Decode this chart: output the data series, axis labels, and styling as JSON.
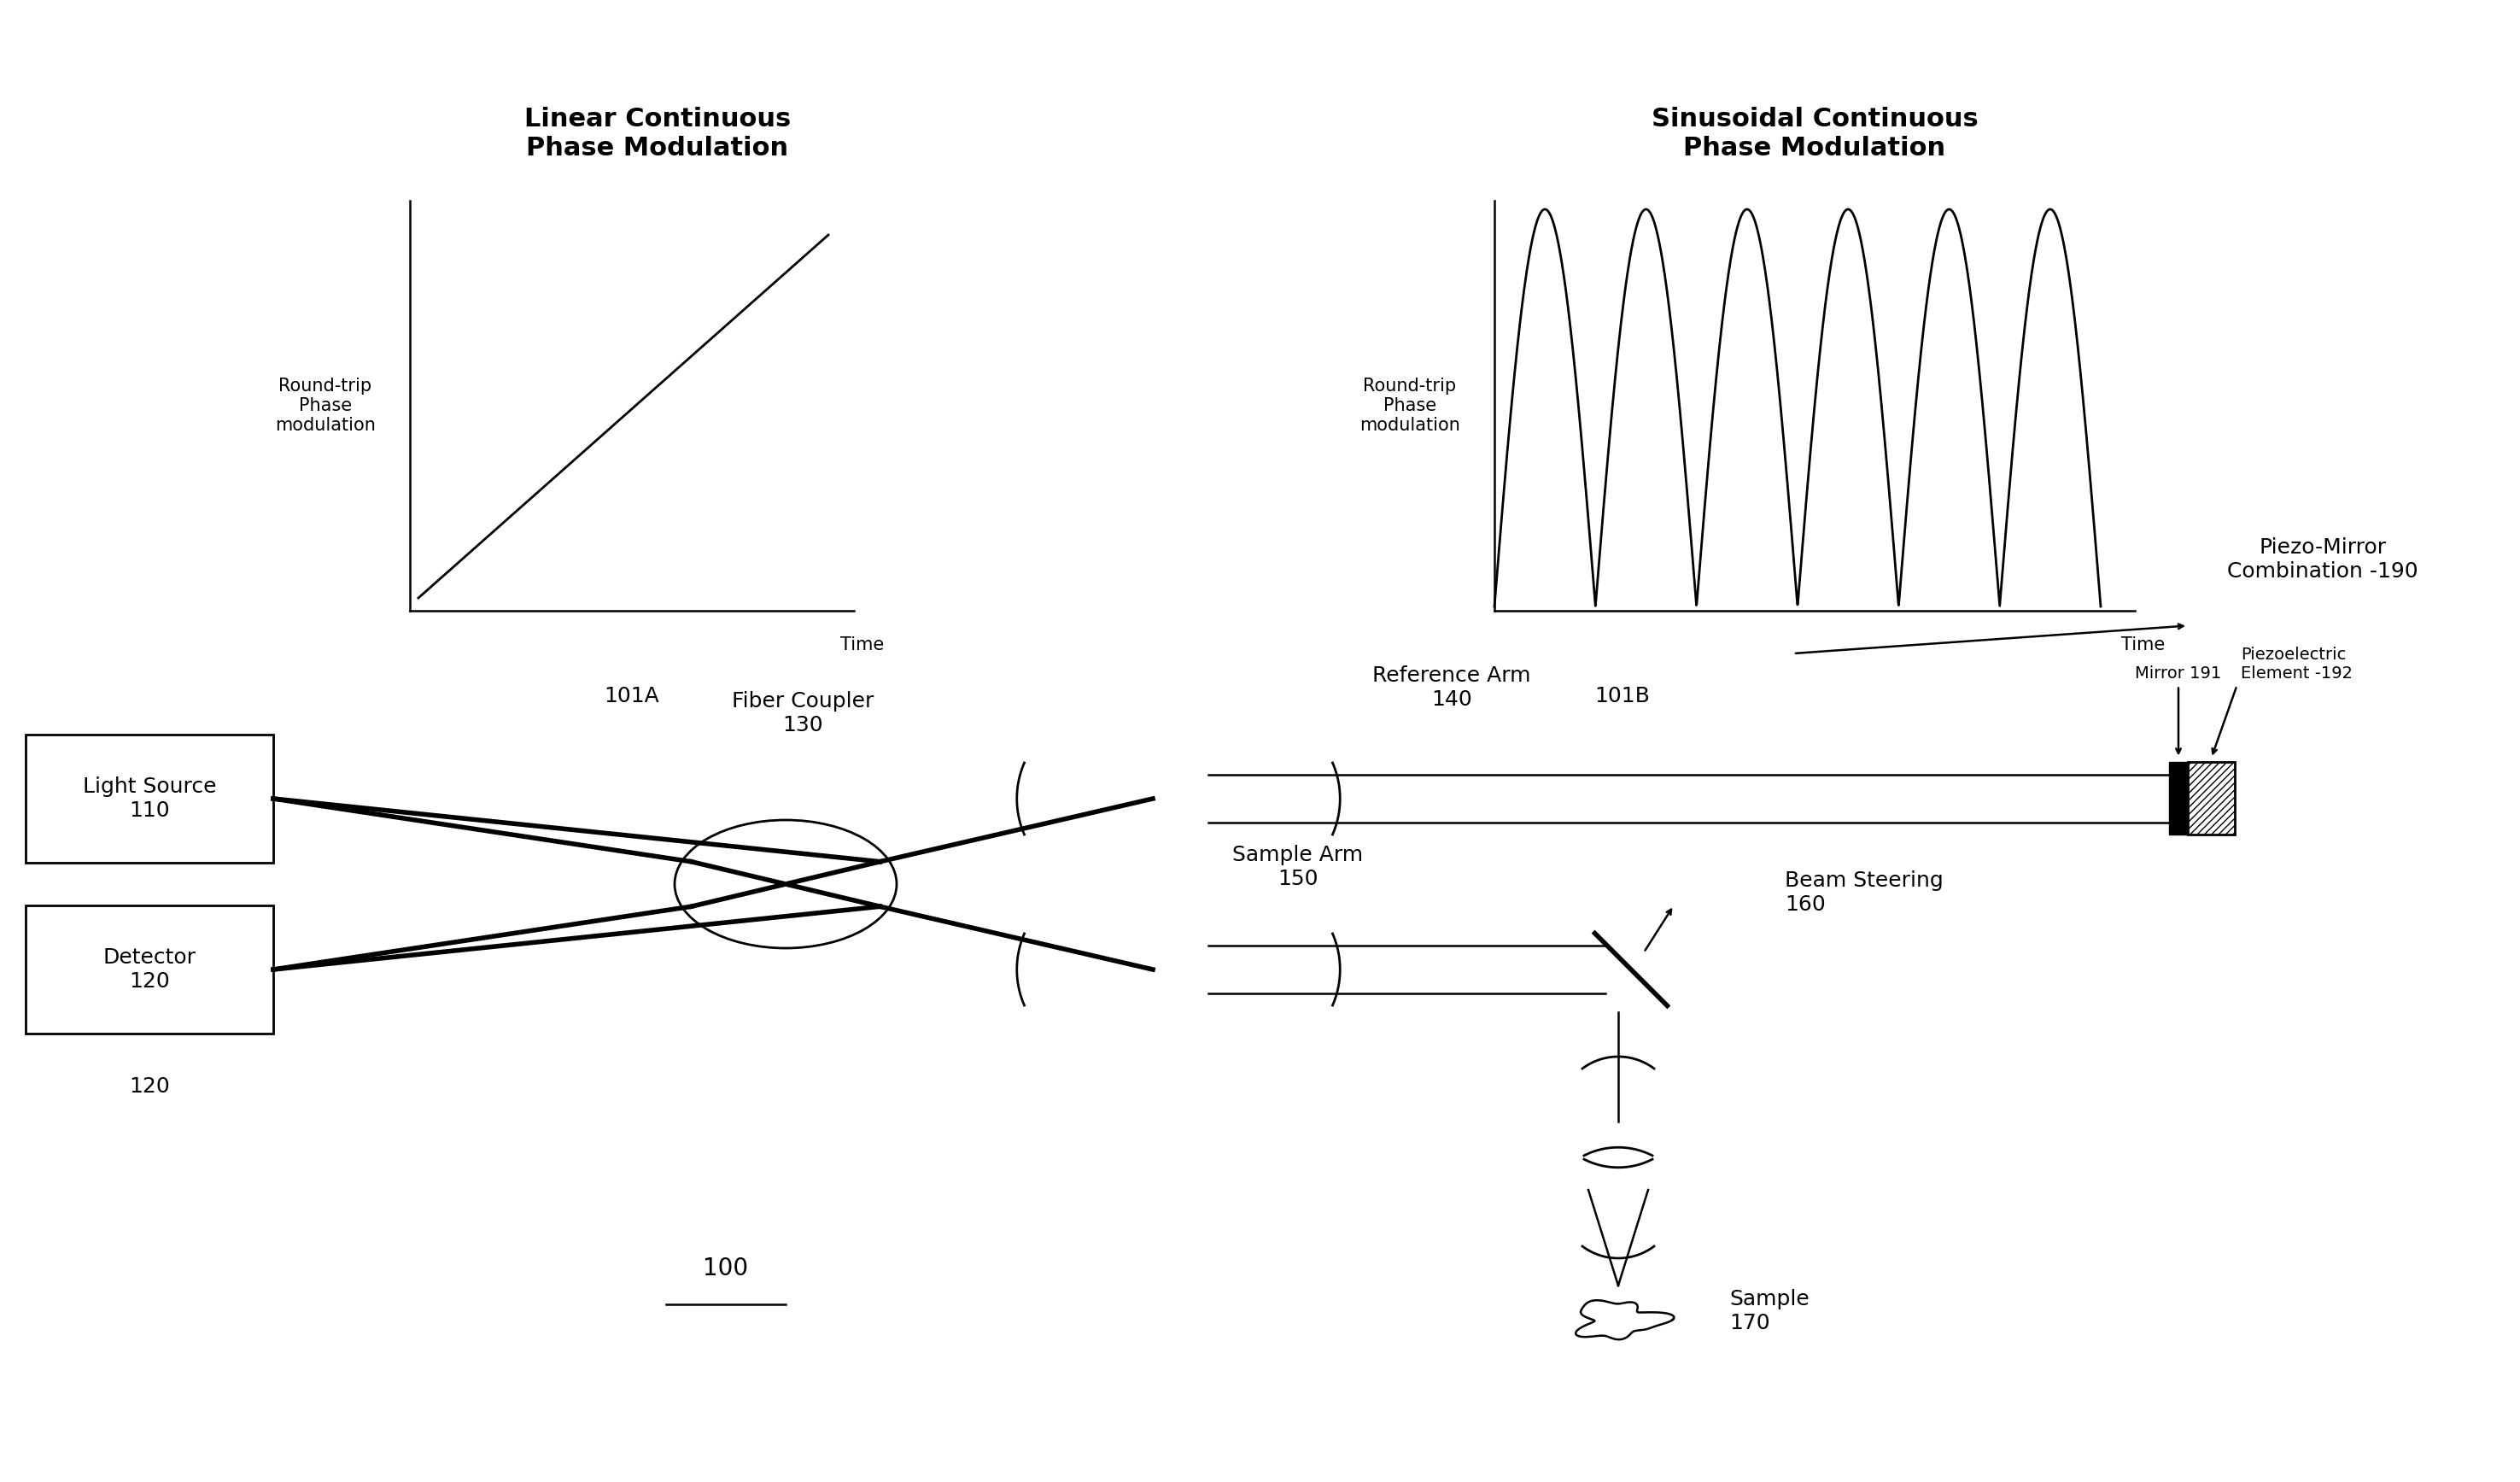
{
  "bg_color": "#ffffff",
  "fig_width": 29.51,
  "fig_height": 17.35,
  "linear_title": "Linear Continuous\nPhase Modulation",
  "sinusoidal_title": "Sinusoidal Continuous\nPhase Modulation",
  "ylabel_linear": "Round-trip\nPhase\nmodulation",
  "ylabel_sinusoidal": "Round-trip\nPhase\nmodulation",
  "xlabel_time": "Time",
  "label_101A": "101A",
  "label_101B": "101B",
  "label_lightsource": "Light Source\n110",
  "label_detector": "Detector\n120",
  "label_fibercoupler": "Fiber Coupler\n130",
  "label_refarm": "Reference Arm\n140",
  "label_samplearm": "Sample Arm\n150",
  "label_beamsteering": "Beam Steering\n160",
  "label_sample": "Sample\n170",
  "label_piezo": "Piezo-Mirror\nCombination -190",
  "label_mirror": "Mirror 191",
  "label_piezoelectric": "Piezoelectric\nElement -192",
  "label_100": "100",
  "font_size_title": 22,
  "font_size_label": 18,
  "font_size_axis": 15,
  "font_size_small": 14
}
